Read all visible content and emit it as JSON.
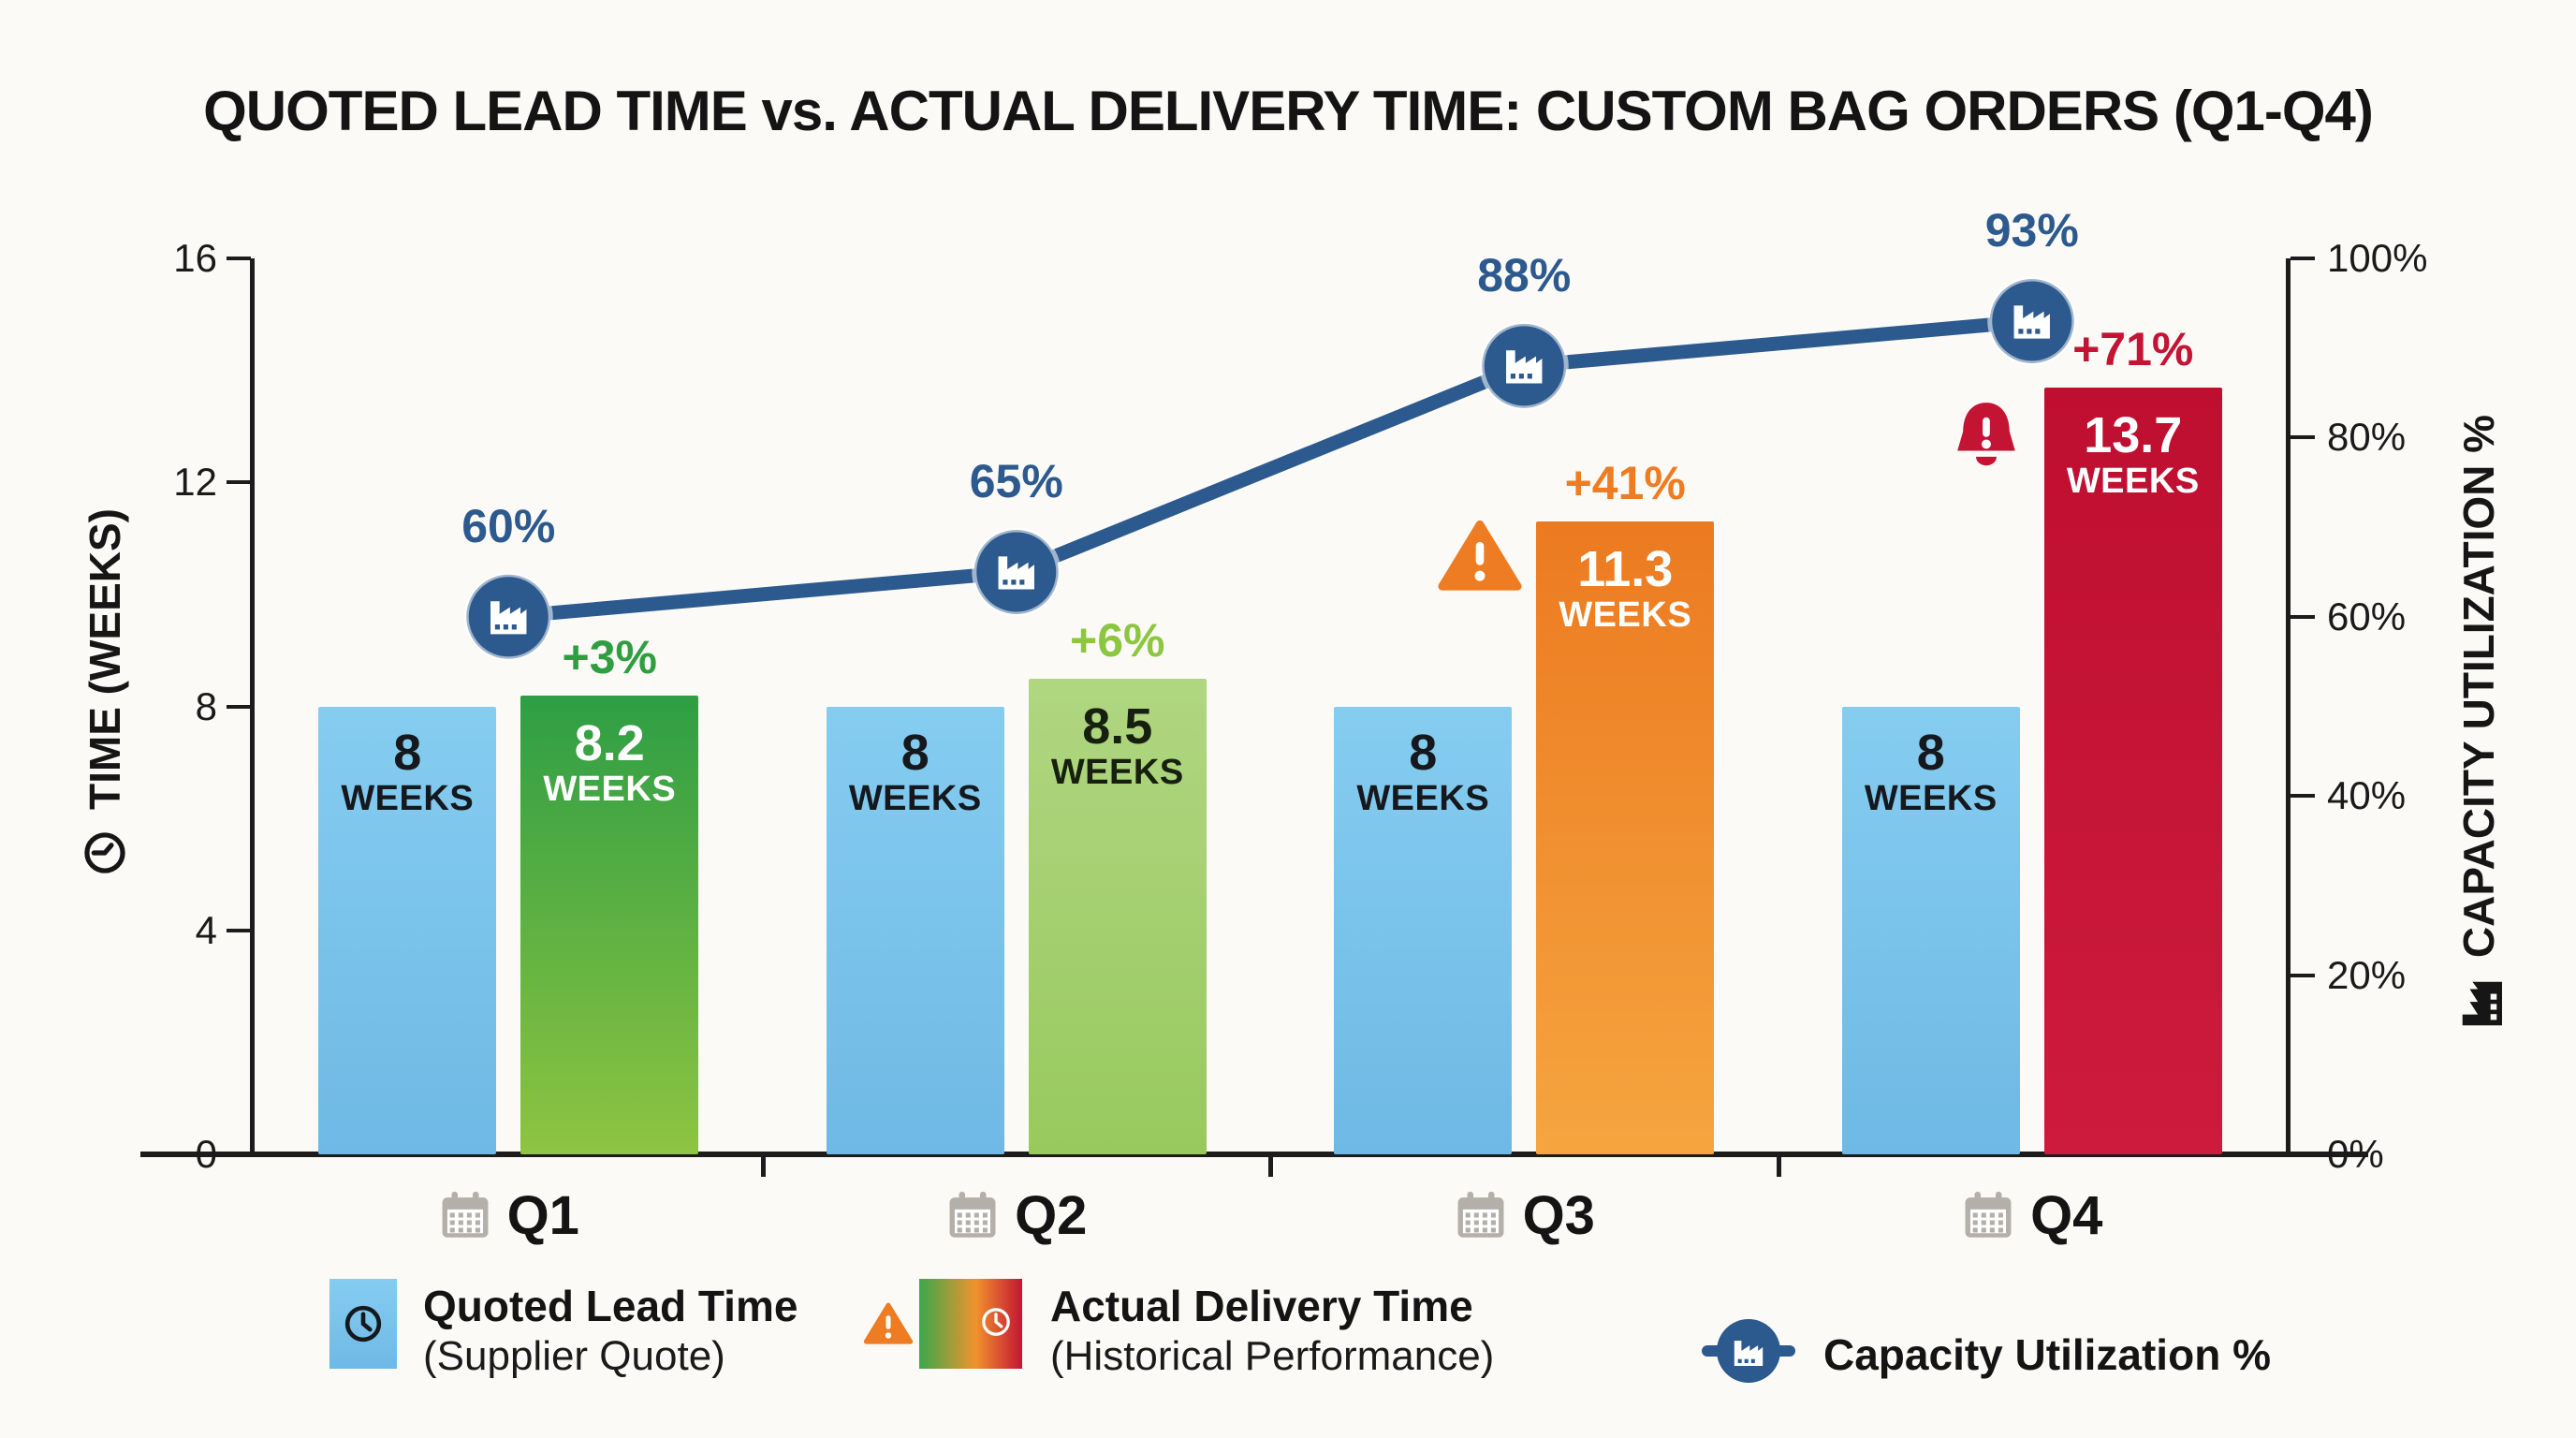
{
  "title": "QUOTED LEAD TIME vs. ACTUAL DELIVERY TIME: CUSTOM BAG ORDERS (Q1-Q4)",
  "left_axis": {
    "title": "TIME (WEEKS)",
    "icon": "clock-icon",
    "tick_labels": [
      "16",
      "12",
      "8",
      "4",
      "0"
    ],
    "tick_values": [
      16,
      12,
      8,
      4,
      0
    ],
    "range": [
      0,
      16
    ]
  },
  "right_axis": {
    "title": "CAPACITY UTILIZATION %",
    "icon": "factory-icon",
    "tick_labels": [
      "100%",
      "80%",
      "60%",
      "40%",
      "20%",
      "0%"
    ],
    "tick_values": [
      100,
      80,
      60,
      40,
      20,
      0
    ],
    "range": [
      0,
      100
    ]
  },
  "chart_data": {
    "type": "bar",
    "subtype": "grouped-bars-with-line",
    "categories": [
      "Q1",
      "Q2",
      "Q3",
      "Q4"
    ],
    "category_icon": "calendar-icon",
    "unit_label": "WEEKS",
    "series": [
      {
        "name": "Quoted Lead Time (Supplier Quote)",
        "type": "bar",
        "values": [
          8,
          8,
          8,
          8
        ],
        "value_labels": [
          "8",
          "8",
          "8",
          "8"
        ]
      },
      {
        "name": "Actual Delivery Time (Historical Performance)",
        "type": "bar",
        "values": [
          8.2,
          8.5,
          11.3,
          13.7
        ],
        "value_labels": [
          "8.2",
          "8.5",
          "11.3",
          "13.7"
        ],
        "delta_labels": [
          "+3%",
          "+6%",
          "+41%",
          "+71%"
        ],
        "alert_icons": [
          null,
          null,
          "warning-triangle-icon",
          "alert-bell-icon"
        ]
      },
      {
        "name": "Capacity Utilization %",
        "type": "line",
        "values": [
          60,
          65,
          88,
          93
        ],
        "point_labels": [
          "60%",
          "65%",
          "88%",
          "93%"
        ],
        "marker_icon": "factory-icon"
      }
    ],
    "ylim_weeks": [
      0,
      16
    ],
    "ylim_pct": [
      0,
      100
    ],
    "grid": false,
    "legend_position": "bottom"
  },
  "legend": [
    {
      "label": "Quoted Lead Time",
      "sublabel": "(Supplier Quote)",
      "swatch_icon": "clock-icon"
    },
    {
      "label": "Actual Delivery Time",
      "sublabel": "(Historical Performance)",
      "swatch_icon": "clock-icon",
      "extra_icon": "warning-triangle-icon"
    },
    {
      "label": "Capacity Utilization %",
      "sublabel": "",
      "swatch_icon": "factory-icon"
    }
  ],
  "colors": {
    "background": "#fbfaf7",
    "axis": "#1c1c1c",
    "text": "#141414",
    "quoted_bar_top": "#85ccf0",
    "quoted_bar_bottom": "#6eb9e5",
    "quoted_bar_text": "#15181c",
    "actual_bars": [
      {
        "top": "#2e9e44",
        "bottom": "#8ec441",
        "text": "#ffffff",
        "delta": "#2f9e41"
      },
      {
        "top": "#b0d681",
        "bottom": "#98c95e",
        "text": "#17200f",
        "delta": "#8dc63f"
      },
      {
        "top": "#ec7a20",
        "bottom": "#f5a53f",
        "text": "#ffffff",
        "delta": "#ee7c22"
      },
      {
        "top": "#bf0f30",
        "bottom": "#cc1b3c",
        "text": "#ffffff",
        "delta": "#c31434"
      }
    ],
    "line": "#2d5a8e",
    "marker_fill": "#2d5a8e",
    "pct_label": "#2d5a8e",
    "warning_orange": "#ee7c22",
    "alert_red": "#c31434",
    "calendar_gray": "#b4afa9",
    "legend_gradient": [
      "#3aa84c",
      "#f0922d",
      "#c31434"
    ]
  }
}
